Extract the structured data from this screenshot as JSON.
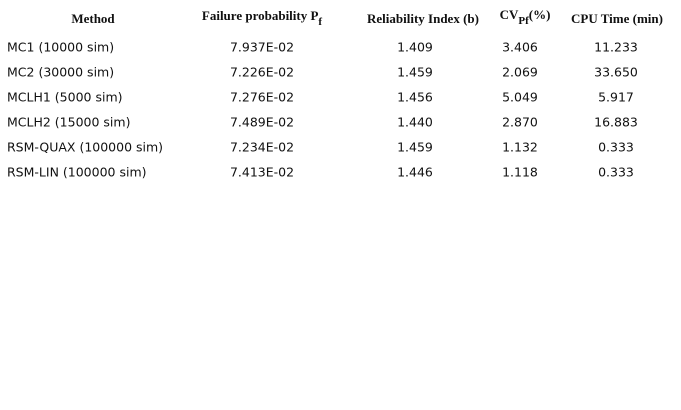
{
  "table": {
    "header": [
      "Method",
      {
        "text": "Failure probability P",
        "sub": "f"
      },
      "Reliability Index (b)",
      {
        "text": "CV",
        "sub": "Pf",
        "after": "(%)"
      },
      "CPU Time (min)"
    ],
    "rows": [
      [
        "MC1 (10000 sim)",
        "7.937E-02",
        "1.409",
        "3.406",
        "11.233"
      ],
      [
        "MC2 (30000 sim)",
        "7.226E-02",
        "1.459",
        "2.069",
        "33.650"
      ],
      [
        "MCLH1 (5000 sim)",
        "7.276E-02",
        "1.456",
        "5.049",
        "5.917"
      ],
      [
        "MCLH2 (15000 sim)",
        "7.489E-02",
        "1.440",
        "2.870",
        "16.883"
      ],
      [
        "RSM-QUAX (100000 sim)",
        "7.234E-02",
        "1.459",
        "1.132",
        "0.333"
      ],
      [
        "RSM-LIN (100000 sim)",
        "7.413E-02",
        "1.446",
        "1.118",
        "0.333"
      ]
    ]
  }
}
